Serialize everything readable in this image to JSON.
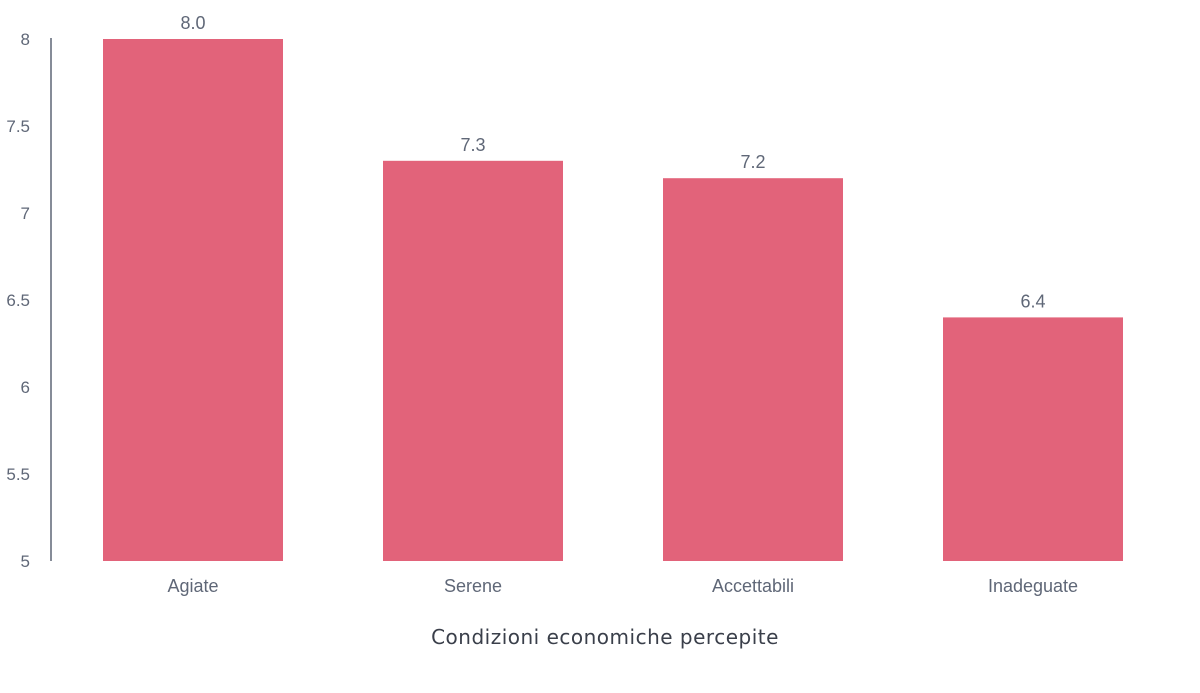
{
  "chart_data": {
    "type": "bar",
    "categories": [
      "Agiate",
      "Serene",
      "Accettabili",
      "Inadeguate"
    ],
    "values": [
      8.0,
      7.3,
      7.2,
      6.4
    ],
    "value_labels": [
      "8.0",
      "7.3",
      "7.2",
      "6.4"
    ],
    "title": "",
    "xlabel": "Condizioni economiche percepite",
    "ylabel": "",
    "ylim": [
      5,
      8
    ],
    "yticks": [
      5,
      5.5,
      6,
      6.5,
      7,
      7.5,
      8
    ],
    "ytick_labels": [
      "5",
      "5.5",
      "6",
      "6.5",
      "7",
      "7.5",
      "8"
    ],
    "grid": false,
    "legend": "none"
  },
  "colors": {
    "bar": "#e2637a",
    "axis": "#5f6777",
    "text": "#5f6777"
  }
}
